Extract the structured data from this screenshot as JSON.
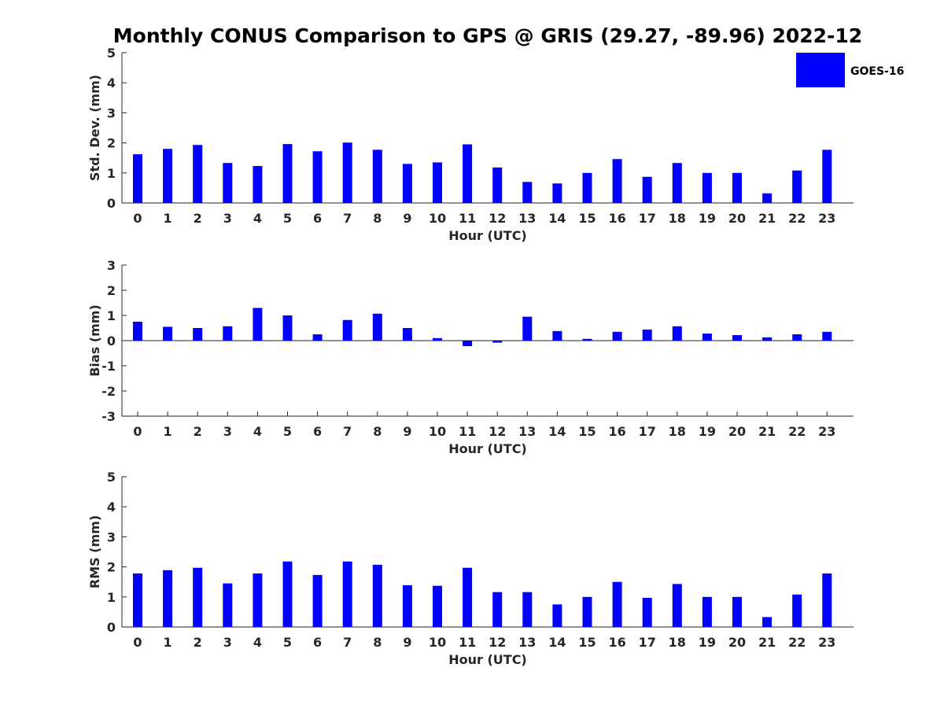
{
  "title": "Monthly CONUS Comparison to GPS @ GRIS (29.27, -89.96) 2022-12",
  "legend": {
    "label": "GOES-16",
    "color": "#0000ff",
    "placement": "top-right"
  },
  "chart_data": [
    {
      "type": "bar",
      "xlabel": "Hour (UTC)",
      "ylabel": "Std. Dev. (mm)",
      "ylim": [
        0,
        5
      ],
      "yticks": [
        0,
        1,
        2,
        3,
        4,
        5
      ],
      "categories": [
        "0",
        "1",
        "2",
        "3",
        "4",
        "5",
        "6",
        "7",
        "8",
        "9",
        "10",
        "11",
        "12",
        "13",
        "14",
        "15",
        "16",
        "17",
        "18",
        "19",
        "20",
        "21",
        "22",
        "23"
      ],
      "series": [
        {
          "name": "GOES-16",
          "color": "#0000ff",
          "values": [
            1.62,
            1.8,
            1.93,
            1.33,
            1.23,
            1.96,
            1.72,
            2.01,
            1.77,
            1.3,
            1.35,
            1.95,
            1.18,
            0.7,
            0.65,
            1.0,
            1.46,
            0.87,
            1.33,
            1.0,
            1.0,
            0.32,
            1.08,
            1.77
          ]
        }
      ]
    },
    {
      "type": "bar",
      "xlabel": "Hour (UTC)",
      "ylabel": "Bias (mm)",
      "ylim": [
        -3,
        3
      ],
      "yticks": [
        -3,
        -2,
        -1,
        0,
        1,
        2,
        3
      ],
      "categories": [
        "0",
        "1",
        "2",
        "3",
        "4",
        "5",
        "6",
        "7",
        "8",
        "9",
        "10",
        "11",
        "12",
        "13",
        "14",
        "15",
        "16",
        "17",
        "18",
        "19",
        "20",
        "21",
        "22",
        "23"
      ],
      "series": [
        {
          "name": "GOES-16",
          "color": "#0000ff",
          "values": [
            0.75,
            0.55,
            0.5,
            0.57,
            1.3,
            1.0,
            0.25,
            0.82,
            1.07,
            0.5,
            0.1,
            -0.22,
            -0.08,
            0.95,
            0.38,
            0.07,
            0.35,
            0.44,
            0.57,
            0.28,
            0.22,
            0.13,
            0.25,
            0.35
          ]
        }
      ]
    },
    {
      "type": "bar",
      "xlabel": "Hour (UTC)",
      "ylabel": "RMS (mm)",
      "ylim": [
        0,
        5
      ],
      "yticks": [
        0,
        1,
        2,
        3,
        4,
        5
      ],
      "categories": [
        "0",
        "1",
        "2",
        "3",
        "4",
        "5",
        "6",
        "7",
        "8",
        "9",
        "10",
        "11",
        "12",
        "13",
        "14",
        "15",
        "16",
        "17",
        "18",
        "19",
        "20",
        "21",
        "22",
        "23"
      ],
      "series": [
        {
          "name": "GOES-16",
          "color": "#0000ff",
          "values": [
            1.78,
            1.89,
            1.97,
            1.45,
            1.78,
            2.18,
            1.73,
            2.18,
            2.07,
            1.39,
            1.37,
            1.97,
            1.16,
            1.16,
            0.75,
            1.0,
            1.5,
            0.97,
            1.43,
            1.0,
            1.0,
            0.33,
            1.08,
            1.78
          ]
        }
      ]
    }
  ]
}
